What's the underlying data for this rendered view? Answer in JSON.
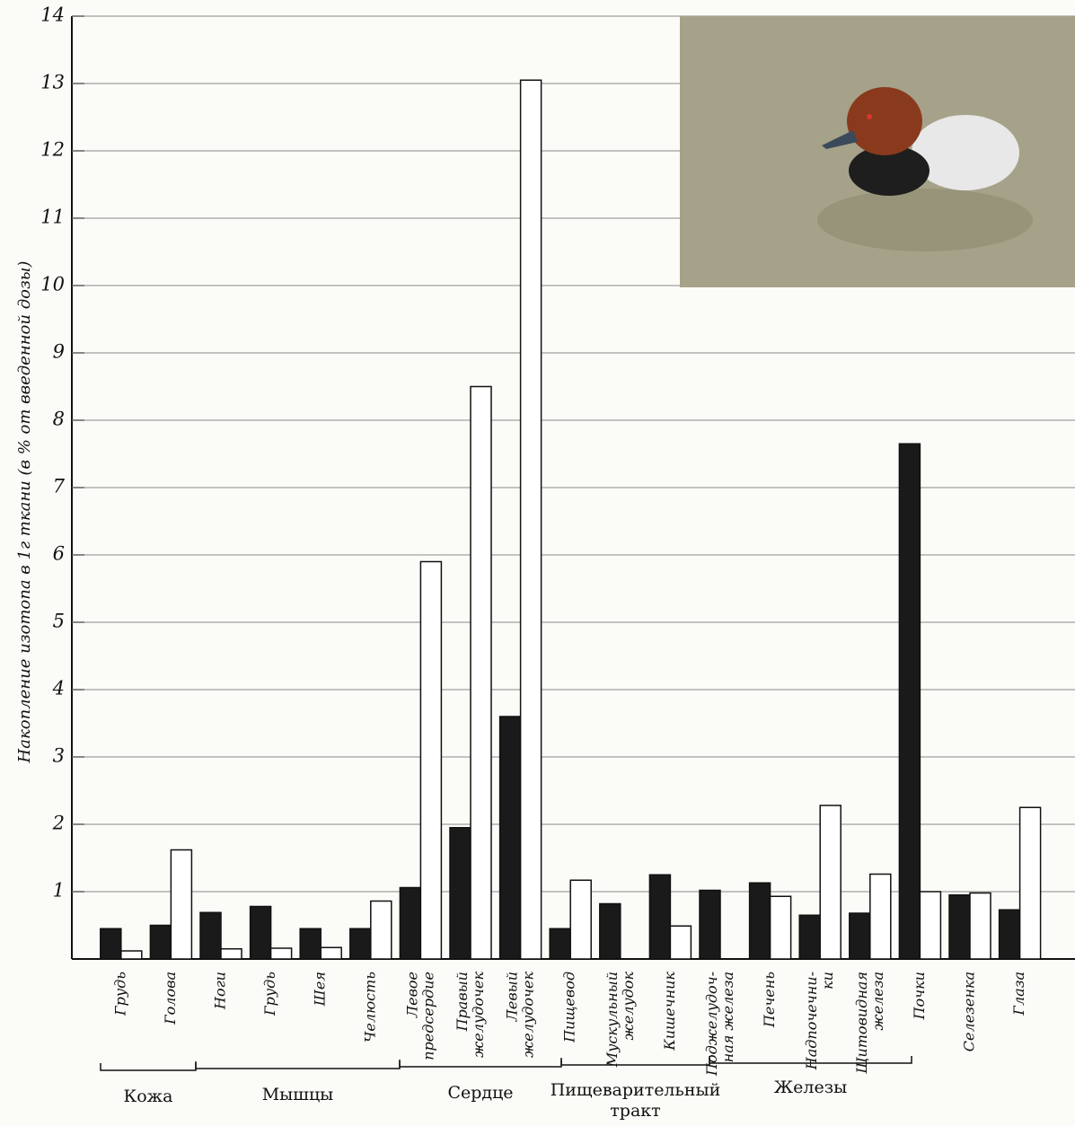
{
  "chart_data": {
    "type": "bar",
    "y_label": "Накопление изотопа в 1г ткани (в % от введенной дозы)",
    "categories": [
      "Грудь",
      "Голова",
      "Ноги",
      "Грудь",
      "Шея",
      "Челюсть",
      "Левое\nпредсердие",
      "Правый\nжелудочек",
      "Левый\nжелудочек",
      "Пищевод",
      "Мускульный\nжелудок",
      "Кишечник",
      "Поджелудоч-\nная железа",
      "Печень",
      "Надпочечни-\nки",
      "Щитовидная\nжелеза",
      "Почки",
      "Селезенка",
      "Глаза"
    ],
    "groups": [
      "Кожа",
      "Мышцы",
      "Сердце",
      "Пищеварительный\nтракт",
      "Железы"
    ],
    "series": [
      {
        "color": "#1a1a1a",
        "values": [
          0.45,
          0.5,
          0.69,
          0.78,
          0.45,
          0.45,
          1.06,
          1.95,
          3.6,
          0.45,
          0.82,
          1.25,
          1.02,
          1.13,
          0.65,
          0.68,
          7.65,
          0.95,
          0.73
        ]
      },
      {
        "color": "#ffffff",
        "values": [
          0.12,
          1.62,
          0.15,
          0.16,
          0.17,
          0.86,
          5.9,
          8.5,
          13.05,
          1.17,
          null,
          0.49,
          null,
          0.93,
          2.28,
          1.26,
          1.0,
          0.98,
          2.25
        ]
      }
    ],
    "ylim": [
      0,
      14
    ],
    "yticks": [
      1,
      2,
      3,
      4,
      5,
      6,
      7,
      8,
      9,
      10,
      11,
      12,
      13,
      14
    ],
    "grid": true
  }
}
